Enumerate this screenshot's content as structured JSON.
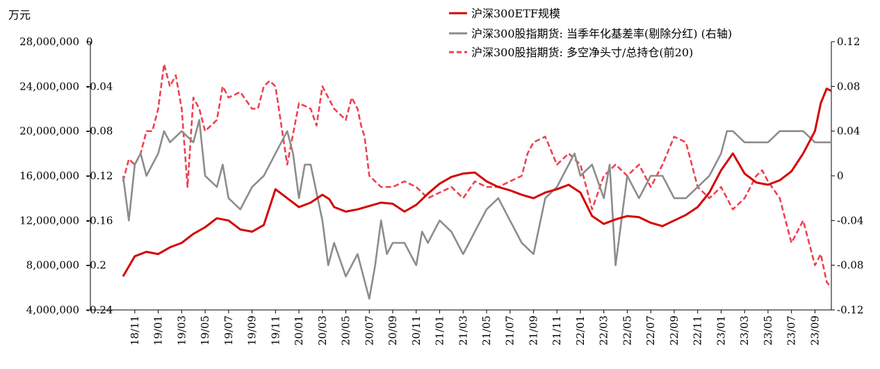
{
  "chart_data": {
    "type": "line",
    "unit_label": "万元",
    "left_axis_labels": [
      "28,000,000",
      "24,000,000",
      "20,000,000",
      "16,000,000",
      "12,000,000",
      "8,000,000",
      "4,000,000"
    ],
    "left_axis_values": [
      28000000,
      24000000,
      20000000,
      16000000,
      12000000,
      8000000,
      4000000
    ],
    "left2_axis_labels": [
      "0",
      "-0.04",
      "-0.08",
      "-0.12",
      "-0.16",
      "-0.2",
      "-0.24"
    ],
    "left2_axis_values": [
      0,
      -0.04,
      -0.08,
      -0.12,
      -0.16,
      -0.2,
      -0.24
    ],
    "right_axis_labels": [
      "0.12",
      "0.08",
      "0.04",
      "0",
      "-0.04",
      "-0.08",
      "-0.12"
    ],
    "right_axis_values": [
      0.12,
      0.08,
      0.04,
      0,
      -0.04,
      -0.08,
      -0.12
    ],
    "ylim_left": [
      4000000,
      28000000
    ],
    "ylim_left2": [
      -0.24,
      0
    ],
    "ylim_right": [
      -0.12,
      0.12
    ],
    "x_tick_labels": [
      "18/11",
      "19/01",
      "19/03",
      "19/05",
      "19/07",
      "19/09",
      "19/11",
      "20/01",
      "20/03",
      "20/05",
      "20/07",
      "20/09",
      "20/11",
      "21/01",
      "21/03",
      "21/05",
      "21/07",
      "21/09",
      "21/11",
      "22/01",
      "22/03",
      "22/05",
      "22/07",
      "22/09",
      "22/11",
      "23/01",
      "23/03",
      "23/05",
      "23/07",
      "23/09"
    ],
    "x_tick_index": [
      1,
      3,
      5,
      7,
      9,
      11,
      13,
      15,
      17,
      19,
      21,
      23,
      25,
      27,
      29,
      31,
      33,
      35,
      37,
      39,
      41,
      43,
      45,
      47,
      49,
      51,
      53,
      55,
      57,
      59
    ],
    "x_range": [
      0,
      60.4
    ],
    "legend_position": "top-center",
    "series": [
      {
        "name": "沪深300ETF规模",
        "axis": "left",
        "color": "#d40000",
        "dash": "solid",
        "x": [
          0,
          1,
          2,
          3,
          4,
          5,
          6,
          7,
          8,
          9,
          10,
          11,
          12,
          13,
          14,
          15,
          16,
          17,
          17.6,
          18,
          19,
          20,
          21,
          22,
          23,
          24,
          25,
          26,
          27,
          28,
          29,
          30,
          31,
          32,
          33,
          34,
          35,
          36,
          37,
          38,
          39,
          40,
          41,
          42,
          43,
          44,
          45,
          46,
          47,
          48,
          49,
          50,
          51,
          52,
          53,
          54,
          55,
          56,
          57,
          58,
          59,
          59.5,
          60,
          60.4
        ],
        "values": [
          7000000,
          8800000,
          9200000,
          9000000,
          9600000,
          10000000,
          10800000,
          11400000,
          12200000,
          12000000,
          11200000,
          11000000,
          11600000,
          14800000,
          14000000,
          13200000,
          13600000,
          14300000,
          13900000,
          13200000,
          12800000,
          13000000,
          13300000,
          13600000,
          13500000,
          12800000,
          13400000,
          14400000,
          15300000,
          15900000,
          16200000,
          16300000,
          15500000,
          15000000,
          14700000,
          14300000,
          14000000,
          14500000,
          14800000,
          15200000,
          14500000,
          12400000,
          11700000,
          12100000,
          12400000,
          12300000,
          11800000,
          11500000,
          12000000,
          12500000,
          13200000,
          14500000,
          16500000,
          18000000,
          16200000,
          15400000,
          15200000,
          15600000,
          16400000,
          18000000,
          20000000,
          22500000,
          23800000,
          23600000
        ]
      },
      {
        "name": "沪深300股指期货: 当季年化基差率(剔除分红) (右轴)",
        "axis": "right",
        "color": "#8c8c8c",
        "dash": "solid",
        "x": [
          0,
          0.5,
          1,
          1.5,
          2,
          3,
          3.5,
          4,
          5,
          6,
          6.5,
          7,
          8,
          8.5,
          9,
          10,
          11,
          12,
          13,
          14,
          14.5,
          15,
          15.5,
          16,
          17,
          17.5,
          18,
          19,
          20,
          21,
          21.5,
          22,
          22.5,
          23,
          24,
          25,
          25.5,
          26,
          27,
          28,
          28.5,
          29,
          30,
          31,
          32,
          33,
          34,
          35,
          36,
          37,
          38,
          38.5,
          39,
          40,
          41,
          41.5,
          42,
          43,
          44,
          45,
          46,
          47,
          48,
          49,
          50,
          51,
          51.5,
          52,
          53,
          54,
          55,
          56,
          57,
          58,
          59,
          60,
          60.4
        ],
        "values": [
          0.0,
          -0.04,
          0.01,
          0.02,
          0.0,
          0.02,
          0.04,
          0.03,
          0.04,
          0.03,
          0.05,
          0.0,
          -0.01,
          0.01,
          -0.02,
          -0.03,
          -0.01,
          0.0,
          0.02,
          0.04,
          0.02,
          -0.02,
          0.01,
          0.01,
          -0.04,
          -0.08,
          -0.06,
          -0.09,
          -0.07,
          -0.11,
          -0.08,
          -0.04,
          -0.07,
          -0.06,
          -0.06,
          -0.08,
          -0.05,
          -0.06,
          -0.04,
          -0.05,
          -0.06,
          -0.07,
          -0.05,
          -0.03,
          -0.02,
          -0.04,
          -0.06,
          -0.07,
          -0.02,
          -0.01,
          0.01,
          0.02,
          0.0,
          0.01,
          -0.02,
          0.01,
          -0.08,
          0.0,
          -0.02,
          0.0,
          0.0,
          -0.02,
          -0.02,
          -0.01,
          0.0,
          0.02,
          0.04,
          0.04,
          0.03,
          0.03,
          0.03,
          0.04,
          0.04,
          0.04,
          0.03,
          0.03,
          0.03
        ]
      },
      {
        "name": "沪深300股指期货: 多空净头寸/总持仓(前20)",
        "axis": "left2",
        "color": "#f04050",
        "dash": "dashed",
        "x": [
          0,
          0.5,
          1,
          1.5,
          2,
          2.5,
          3,
          3.5,
          4,
          4.5,
          5,
          5.5,
          6,
          6.5,
          7,
          8,
          8.5,
          9,
          10,
          11,
          11.5,
          12,
          12.5,
          13,
          14,
          15,
          16,
          16.5,
          17,
          18,
          19,
          19.5,
          20,
          20.3,
          20.6,
          21,
          22,
          23,
          24,
          25,
          26,
          27,
          28,
          29,
          30,
          31,
          32,
          33,
          34,
          34.5,
          35,
          36,
          37,
          38,
          39,
          40,
          41,
          42,
          43,
          44,
          45,
          46,
          47,
          48,
          49,
          50,
          51,
          52,
          53,
          54,
          54.5,
          55,
          56,
          57,
          58,
          59,
          59.5,
          60,
          60.4
        ],
        "values": [
          -0.125,
          -0.105,
          -0.11,
          -0.1,
          -0.08,
          -0.08,
          -0.06,
          -0.02,
          -0.04,
          -0.03,
          -0.06,
          -0.13,
          -0.05,
          -0.06,
          -0.08,
          -0.07,
          -0.04,
          -0.05,
          -0.045,
          -0.06,
          -0.06,
          -0.04,
          -0.035,
          -0.04,
          -0.11,
          -0.055,
          -0.06,
          -0.075,
          -0.04,
          -0.06,
          -0.07,
          -0.05,
          -0.06,
          -0.075,
          -0.085,
          -0.12,
          -0.13,
          -0.13,
          -0.125,
          -0.13,
          -0.14,
          -0.135,
          -0.13,
          -0.14,
          -0.125,
          -0.13,
          -0.13,
          -0.125,
          -0.12,
          -0.1,
          -0.09,
          -0.085,
          -0.11,
          -0.1,
          -0.11,
          -0.15,
          -0.12,
          -0.11,
          -0.12,
          -0.11,
          -0.13,
          -0.11,
          -0.085,
          -0.09,
          -0.13,
          -0.14,
          -0.13,
          -0.15,
          -0.14,
          -0.12,
          -0.115,
          -0.125,
          -0.14,
          -0.18,
          -0.16,
          -0.2,
          -0.19,
          -0.215,
          -0.22
        ]
      }
    ]
  }
}
